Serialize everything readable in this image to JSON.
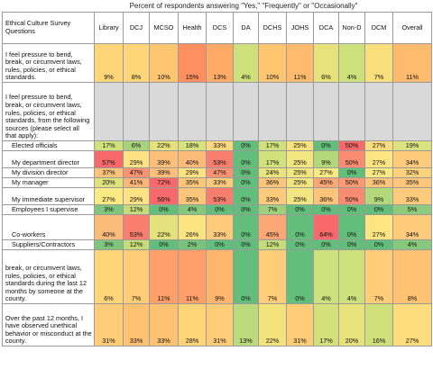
{
  "caption": "Percent of respondents answering \"Yes,\" \"Frequently\" or \"Occasionally\"",
  "header": {
    "question": "Ethical Culture Survey Questions",
    "columns": [
      "Library",
      "DCJ",
      "MCSO",
      "Health",
      "DCS",
      "DA",
      "DCHS",
      "JOHS",
      "DCA",
      "Non-D",
      "DCM",
      "Overall"
    ]
  },
  "rows": [
    {
      "label": "I feel pressure to bend, break, or circumvent laws, rules, policies, or ethical standards.",
      "values": [
        "9%",
        "8%",
        "10%",
        "15%",
        "13%",
        "4%",
        "10%",
        "11%",
        "6%",
        "4%",
        "7%",
        "11%"
      ],
      "colors": [
        "#ffd57a",
        "#ffd57a",
        "#ffc570",
        "#ff8f5f",
        "#ffaa66",
        "#cde07b",
        "#ffc570",
        "#ffbb6d",
        "#e8e27c",
        "#cde07b",
        "#f9df7c",
        "#ffbb6d"
      ]
    },
    {
      "label": "I feel pressure to bend, break, or circumvent laws, rules, policies, or ethical standards, from the following sources (please select all that apply):",
      "values": [
        "",
        "",
        "",
        "",
        "",
        "",
        "",
        "",
        "",
        "",
        "",
        ""
      ],
      "colors": [
        "#d9d9d9",
        "#d9d9d9",
        "#d9d9d9",
        "#d9d9d9",
        "#d9d9d9",
        "#d9d9d9",
        "#d9d9d9",
        "#d9d9d9",
        "#d9d9d9",
        "#d9d9d9",
        "#d9d9d9",
        "#d9d9d9"
      ]
    },
    {
      "label": "Elected officials",
      "values": [
        "17%",
        "6%",
        "22%",
        "18%",
        "33%",
        "0%",
        "17%",
        "25%",
        "0%",
        "50%",
        "27%",
        "19%"
      ],
      "colors": [
        "#d1e27c",
        "#a6d47a",
        "#e5e27d",
        "#d7e37c",
        "#ffd880",
        "#63be7b",
        "#d1e27c",
        "#fce27f",
        "#63be7b",
        "#f8696b",
        "#fbdd7f",
        "#dae37d"
      ]
    },
    {
      "label": "My department director",
      "values": [
        "57%",
        "29%",
        "39%",
        "40%",
        "53%",
        "0%",
        "17%",
        "25%",
        "9%",
        "50%",
        "27%",
        "34%"
      ],
      "colors": [
        "#f8696b",
        "#ffe283",
        "#fdbf7a",
        "#fdbb79",
        "#f97e6e",
        "#63be7b",
        "#d1e27c",
        "#f3e57f",
        "#b3d87a",
        "#fa8c71",
        "#fee582",
        "#feca7c"
      ]
    },
    {
      "label": "My division director",
      "values": [
        "37%",
        "47%",
        "39%",
        "29%",
        "47%",
        "0%",
        "24%",
        "25%",
        "27%",
        "0%",
        "27%",
        "32%"
      ],
      "colors": [
        "#fdc37a",
        "#fb9373",
        "#fdbf7a",
        "#ffe283",
        "#fb9373",
        "#63be7b",
        "#ebe37e",
        "#f3e57f",
        "#fbe983",
        "#63be7b",
        "#fbe983",
        "#fed27d"
      ]
    },
    {
      "label": "My manager",
      "values": [
        "20%",
        "41%",
        "72%",
        "35%",
        "33%",
        "0%",
        "36%",
        "25%",
        "45%",
        "50%",
        "36%",
        "35%"
      ],
      "colors": [
        "#dde27c",
        "#fdb678",
        "#f8696b",
        "#fec67b",
        "#fecb7c",
        "#63be7b",
        "#fdc47a",
        "#f3e57f",
        "#fca775",
        "#fb9a74",
        "#fdc47a",
        "#fec67b"
      ]
    },
    {
      "label": "My immediate supervisor",
      "values": [
        "27%",
        "29%",
        "56%",
        "35%",
        "53%",
        "0%",
        "33%",
        "25%",
        "36%",
        "50%",
        "9%",
        "33%"
      ],
      "colors": [
        "#fbe983",
        "#ffe283",
        "#f8696b",
        "#fec67b",
        "#f97e6e",
        "#63be7b",
        "#fecb7c",
        "#f3e57f",
        "#fdc47a",
        "#fa8c71",
        "#b3d87a",
        "#fecb7c"
      ]
    },
    {
      "label": "Employees I supervise",
      "values": [
        "3%",
        "12%",
        "0%",
        "4%",
        "0%",
        "0%",
        "7%",
        "0%",
        "0%",
        "0%",
        "0%",
        "5%"
      ],
      "colors": [
        "#7fc67c",
        "#c6dc7b",
        "#63be7b",
        "#86c87c",
        "#63be7b",
        "#63be7b",
        "#9fd07d",
        "#63be7b",
        "#63be7b",
        "#63be7b",
        "#63be7b",
        "#8ecb7c"
      ]
    },
    {
      "label": "Co-workers",
      "values": [
        "40%",
        "53%",
        "22%",
        "26%",
        "33%",
        "0%",
        "45%",
        "0%",
        "64%",
        "0%",
        "27%",
        "34%"
      ],
      "colors": [
        "#fdbb79",
        "#f97e6e",
        "#e5e27d",
        "#fbe583",
        "#fecb7c",
        "#63be7b",
        "#fca775",
        "#63be7b",
        "#f8696b",
        "#63be7b",
        "#fee582",
        "#feca7c"
      ]
    },
    {
      "label": "Suppliers/Contractors",
      "values": [
        "3%",
        "12%",
        "0%",
        "2%",
        "0%",
        "0%",
        "12%",
        "0%",
        "0%",
        "0%",
        "0%",
        "4%"
      ],
      "colors": [
        "#7fc67c",
        "#c6dc7b",
        "#63be7b",
        "#79c47c",
        "#63be7b",
        "#63be7b",
        "#c6dc7b",
        "#63be7b",
        "#63be7b",
        "#63be7b",
        "#63be7b",
        "#86c87c"
      ]
    },
    {
      "label": "break, or circumvent laws, rules, policies, or ethical standards during the last 12 months by someone at the county.",
      "values": [
        "6%",
        "7%",
        "11%",
        "11%",
        "9%",
        "0%",
        "7%",
        "0%",
        "4%",
        "4%",
        "7%",
        "8%"
      ],
      "colors": [
        "#ffd57a",
        "#ffcd77",
        "#ff9f69",
        "#ff9f69",
        "#ffb56c",
        "#63be7b",
        "#ffcd77",
        "#63be7b",
        "#cde07b",
        "#cde07b",
        "#ffcd77",
        "#ffc272"
      ]
    },
    {
      "label": "Over the past 12 months, I have observed unethical behavior or misconduct at the county.",
      "values": [
        "31%",
        "33%",
        "33%",
        "28%",
        "31%",
        "13%",
        "22%",
        "31%",
        "17%",
        "20%",
        "16%",
        "27%"
      ],
      "colors": [
        "#ffcd77",
        "#ffc272",
        "#ffc272",
        "#ffd57a",
        "#ffcd77",
        "#bada7b",
        "#f4e27d",
        "#ffcd77",
        "#d4e07b",
        "#e8e27c",
        "#cfe07b",
        "#ffdc7d"
      ]
    }
  ]
}
